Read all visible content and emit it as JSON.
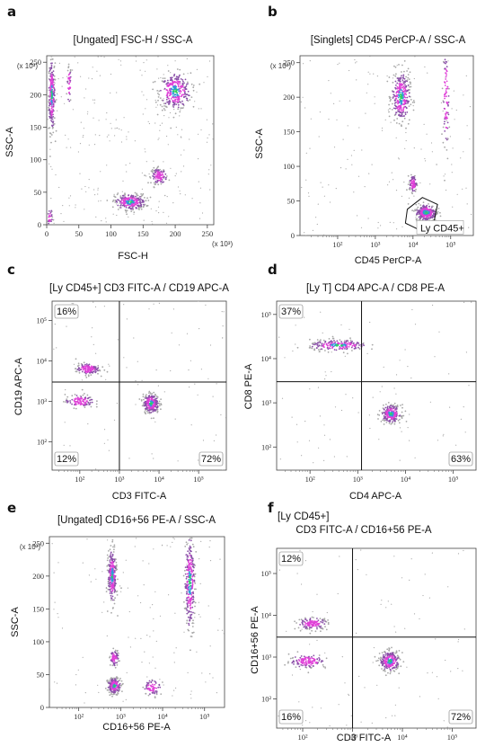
{
  "figure": {
    "panels": [
      {
        "id": "a",
        "letter": "a",
        "title": "[Ungated] FSC-H / SSC-A",
        "xlabel": "FSC-H",
        "ylabel": "SSC-A",
        "x_scale_note": "(x 10³)",
        "y_scale_note": "(x 10³)",
        "x_ticks": [
          "0",
          "50",
          "100",
          "150",
          "200",
          "250"
        ],
        "y_ticks": [
          "0",
          "50",
          "100",
          "150",
          "200",
          "250"
        ]
      },
      {
        "id": "b",
        "letter": "b",
        "title": "[Singlets] CD45 PerCP-A / SSC-A",
        "xlabel": "CD45 PerCP-A",
        "ylabel": "SSC-A",
        "y_scale_note": "(x 10³)",
        "x_ticks": [
          "10²",
          "10³",
          "10⁴",
          "10⁵"
        ],
        "y_ticks": [
          "0",
          "50",
          "100",
          "150",
          "200",
          "250"
        ],
        "gate_label": "Ly CD45+"
      },
      {
        "id": "c",
        "letter": "c",
        "title": "[Ly CD45+] CD3 FITC-A / CD19 APC-A",
        "xlabel": "CD3 FITC-A",
        "ylabel": "CD19 APC-A",
        "x_ticks": [
          "10²",
          "10³",
          "10⁴",
          "10⁵"
        ],
        "y_ticks": [
          "10²",
          "10³",
          "10⁴",
          "10⁵"
        ],
        "quadrants": {
          "upper_left": "16%",
          "lower_left": "12%",
          "lower_right": "72%"
        }
      },
      {
        "id": "d",
        "letter": "d",
        "title": "[Ly T] CD4 APC-A / CD8 PE-A",
        "xlabel": "CD4 APC-A",
        "ylabel": "CD8 PE-A",
        "x_ticks": [
          "10²",
          "10³",
          "10⁴",
          "10⁵"
        ],
        "y_ticks": [
          "10²",
          "10³",
          "10⁴",
          "10⁵"
        ],
        "quadrants": {
          "upper_left": "37%",
          "lower_right": "63%"
        }
      },
      {
        "id": "e",
        "letter": "e",
        "title": "[Ungated] CD16+56 PE-A / SSC-A",
        "xlabel": "CD16+56 PE-A",
        "ylabel": "SSC-A",
        "y_scale_note": "(x 10³)",
        "x_ticks": [
          "10²",
          "10³",
          "10⁴",
          "10⁵"
        ],
        "y_ticks": [
          "0",
          "50",
          "100",
          "150",
          "200",
          "250"
        ]
      },
      {
        "id": "f",
        "letter": "f",
        "title_line1": "[Ly CD45+]",
        "title": "CD3 FITC-A / CD16+56 PE-A",
        "xlabel": "CD3 FITC-A",
        "ylabel": "CD16+56 PE-A",
        "x_ticks": [
          "10²",
          "10³",
          "10⁴",
          "10⁵"
        ],
        "y_ticks": [
          "10²",
          "10³",
          "10⁴",
          "10⁵"
        ],
        "quadrants": {
          "upper_left": "12%",
          "lower_left": "16%",
          "lower_right": "72%"
        }
      }
    ]
  },
  "chart_data": [
    {
      "type": "scatter",
      "panel": "a",
      "title": "[Ungated] FSC-H / SSC-A",
      "xlabel": "FSC-H",
      "ylabel": "SSC-A",
      "x_unit": "x 10³",
      "y_unit": "x 10³",
      "xlim": [
        0,
        260
      ],
      "ylim": [
        0,
        260
      ],
      "x_scale": "linear",
      "y_scale": "linear",
      "populations": [
        {
          "cx": 8,
          "cy": 200,
          "sx": 2.5,
          "sy": 28,
          "n": 260,
          "density": "high"
        },
        {
          "cx": 35,
          "cy": 215,
          "sx": 1.5,
          "sy": 15,
          "n": 40,
          "density": "medium"
        },
        {
          "cx": 200,
          "cy": 205,
          "sx": 12,
          "sy": 14,
          "n": 320,
          "density": "high"
        },
        {
          "cx": 130,
          "cy": 35,
          "sx": 12,
          "sy": 6,
          "n": 280,
          "density": "high"
        },
        {
          "cx": 175,
          "cy": 75,
          "sx": 6,
          "sy": 6,
          "n": 120,
          "density": "medium"
        },
        {
          "cx": 5,
          "cy": 10,
          "sx": 2,
          "sy": 8,
          "n": 30,
          "density": "low"
        }
      ],
      "background_events": 260
    },
    {
      "type": "scatter",
      "panel": "b",
      "title": "[Singlets] CD45 PerCP-A / SSC-A",
      "xlabel": "CD45 PerCP-A",
      "ylabel": "SSC-A",
      "y_unit": "x 10³",
      "xlim": [
        10,
        400000
      ],
      "ylim": [
        0,
        260
      ],
      "x_scale": "log",
      "y_scale": "linear",
      "populations": [
        {
          "cx": 3.68,
          "cy": 200,
          "sx": 0.12,
          "sy": 18,
          "n": 320,
          "density": "high"
        },
        {
          "cx": 4.0,
          "cy": 75,
          "sx": 0.05,
          "sy": 6,
          "n": 90,
          "density": "medium"
        },
        {
          "cx": 4.35,
          "cy": 33,
          "sx": 0.14,
          "sy": 6,
          "n": 300,
          "density": "high"
        },
        {
          "cx": 4.88,
          "cy": 200,
          "sx": 0.04,
          "sy": 40,
          "n": 90,
          "density": "medium"
        }
      ],
      "gate": {
        "name": "Ly CD45+",
        "polygon": [
          [
            3.85,
            38
          ],
          [
            4.25,
            55
          ],
          [
            4.65,
            45
          ],
          [
            4.55,
            18
          ],
          [
            4.1,
            10
          ],
          [
            3.8,
            18
          ]
        ]
      },
      "background_events": 160
    },
    {
      "type": "scatter",
      "panel": "c",
      "title": "[Ly CD45+] CD3 FITC-A / CD19 APC-A",
      "xlabel": "CD3 FITC-A",
      "ylabel": "CD19 APC-A",
      "xlim": [
        20,
        500000
      ],
      "ylim": [
        20,
        300000
      ],
      "x_scale": "log",
      "y_scale": "log",
      "quadrant_gate": {
        "x": 1000,
        "y": 3000
      },
      "populations": [
        {
          "cx": 2.2,
          "cy": 3.8,
          "sx": 0.15,
          "sy": 0.07,
          "n": 140,
          "density": "medium"
        },
        {
          "cx": 2.0,
          "cy": 3.0,
          "sx": 0.18,
          "sy": 0.08,
          "n": 110,
          "density": "medium"
        },
        {
          "cx": 3.8,
          "cy": 2.95,
          "sx": 0.1,
          "sy": 0.12,
          "n": 280,
          "density": "high"
        }
      ],
      "quadrant_percentages": {
        "upper_left": 16,
        "lower_left": 12,
        "lower_right": 72
      }
    },
    {
      "type": "scatter",
      "panel": "d",
      "title": "[Ly T] CD4 APC-A / CD8 PE-A",
      "xlabel": "CD4 APC-A",
      "ylabel": "CD8 PE-A",
      "xlim": [
        20,
        300000
      ],
      "ylim": [
        30,
        200000
      ],
      "x_scale": "log",
      "y_scale": "log",
      "quadrant_gate": {
        "x": 1200,
        "y": 3000
      },
      "populations": [
        {
          "cx": 2.6,
          "cy": 4.3,
          "sx": 0.3,
          "sy": 0.06,
          "n": 220,
          "density": "high"
        },
        {
          "cx": 3.7,
          "cy": 2.75,
          "sx": 0.1,
          "sy": 0.1,
          "n": 240,
          "density": "high"
        }
      ],
      "quadrant_percentages": {
        "upper_left": 37,
        "lower_right": 63
      }
    },
    {
      "type": "scatter",
      "panel": "e",
      "title": "[Ungated] CD16+56 PE-A / SSC-A",
      "xlabel": "CD16+56 PE-A",
      "ylabel": "SSC-A",
      "y_unit": "x 10³",
      "xlim": [
        20,
        300000
      ],
      "ylim": [
        0,
        260
      ],
      "x_scale": "log",
      "y_scale": "linear",
      "populations": [
        {
          "cx": 2.8,
          "cy": 200,
          "sx": 0.05,
          "sy": 20,
          "n": 280,
          "density": "high"
        },
        {
          "cx": 2.85,
          "cy": 75,
          "sx": 0.05,
          "sy": 6,
          "n": 80,
          "density": "medium"
        },
        {
          "cx": 2.85,
          "cy": 33,
          "sx": 0.08,
          "sy": 6,
          "n": 200,
          "density": "high"
        },
        {
          "cx": 3.75,
          "cy": 30,
          "sx": 0.1,
          "sy": 6,
          "n": 70,
          "density": "medium"
        },
        {
          "cx": 4.65,
          "cy": 190,
          "sx": 0.06,
          "sy": 35,
          "n": 300,
          "density": "high"
        }
      ],
      "background_events": 120
    },
    {
      "type": "scatter",
      "panel": "f",
      "title": "CD3 FITC-A / CD16+56 PE-A",
      "xlabel": "CD3 FITC-A",
      "ylabel": "CD16+56 PE-A",
      "xlim": [
        30,
        300000
      ],
      "ylim": [
        20,
        400000
      ],
      "x_scale": "log",
      "y_scale": "log",
      "quadrant_gate": {
        "x": 1000,
        "y": 3000
      },
      "populations": [
        {
          "cx": 2.2,
          "cy": 3.8,
          "sx": 0.15,
          "sy": 0.07,
          "n": 140,
          "density": "medium"
        },
        {
          "cx": 2.1,
          "cy": 2.9,
          "sx": 0.18,
          "sy": 0.08,
          "n": 130,
          "density": "medium"
        },
        {
          "cx": 3.75,
          "cy": 2.9,
          "sx": 0.1,
          "sy": 0.12,
          "n": 260,
          "density": "high"
        }
      ],
      "quadrant_percentages": {
        "upper_left": 12,
        "lower_left": 16,
        "lower_right": 72
      }
    }
  ],
  "colors": {
    "background_event": "#a8a8a8",
    "low_density": "#8a50a8",
    "medium_density": "#e040d8",
    "high_density": "#2f9ad8",
    "peak_density": "#30d060",
    "gate_line": "#111111"
  }
}
